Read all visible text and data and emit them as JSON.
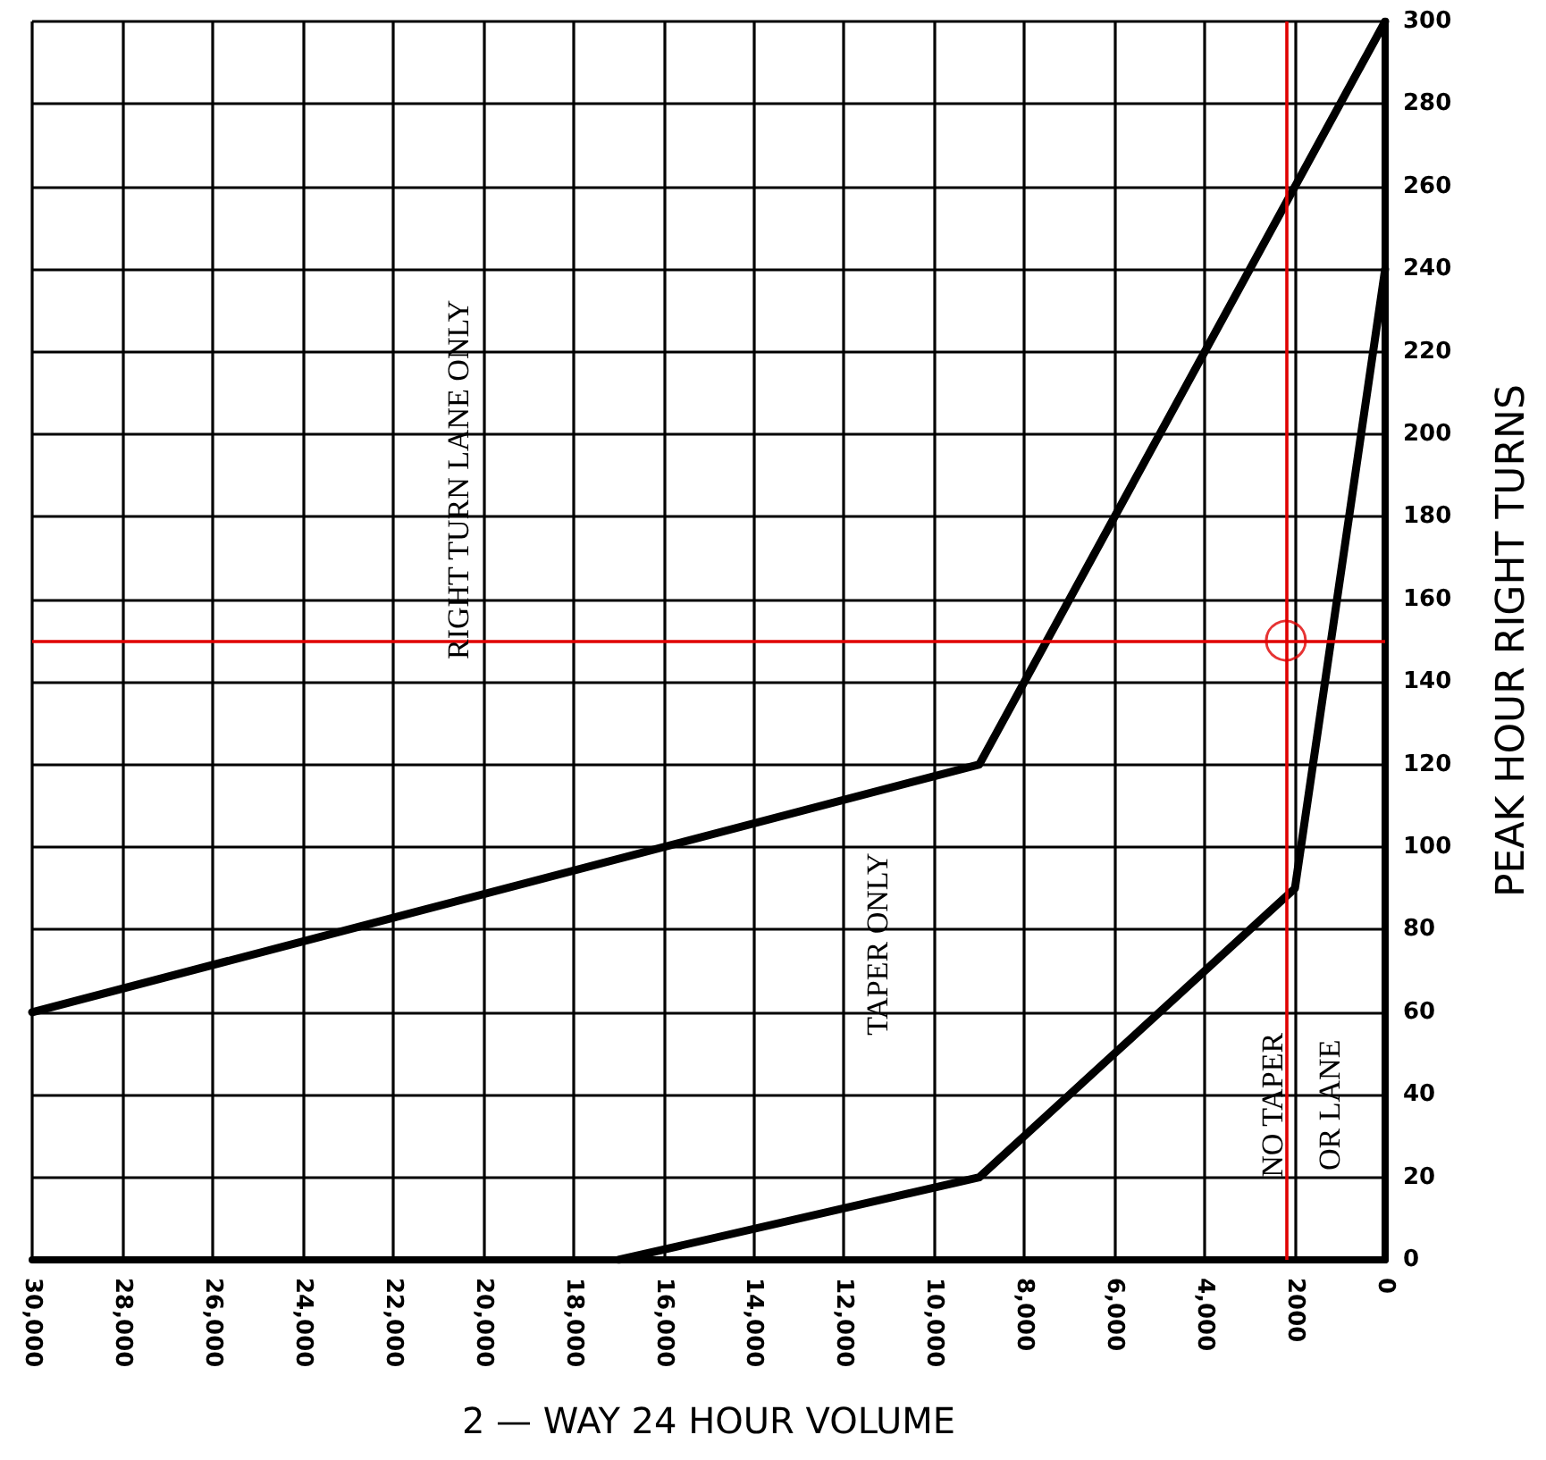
{
  "chart_data": {
    "type": "line",
    "xlabel": "2 — WAY 24 HOUR VOLUME",
    "ylabel": "PEAK HOUR RIGHT TURNS",
    "xlim": [
      30000,
      0
    ],
    "ylim": [
      0,
      300
    ],
    "xticks": [
      {
        "value": 30000,
        "label": "30,000"
      },
      {
        "value": 28000,
        "label": "28,000"
      },
      {
        "value": 26000,
        "label": "26,000"
      },
      {
        "value": 24000,
        "label": "24,000"
      },
      {
        "value": 22000,
        "label": "22,000"
      },
      {
        "value": 20000,
        "label": "20,000"
      },
      {
        "value": 18000,
        "label": "18,000"
      },
      {
        "value": 16000,
        "label": "16,000"
      },
      {
        "value": 14000,
        "label": "14,000"
      },
      {
        "value": 12000,
        "label": "12,000"
      },
      {
        "value": 10000,
        "label": "10,000"
      },
      {
        "value": 8000,
        "label": "8,000"
      },
      {
        "value": 6000,
        "label": "6,000"
      },
      {
        "value": 4000,
        "label": "4,000"
      },
      2000,
      0
    ],
    "yticks": [
      0,
      20,
      40,
      60,
      80,
      100,
      120,
      140,
      160,
      180,
      200,
      220,
      240,
      260,
      280,
      300
    ],
    "grid": true,
    "marker": "none",
    "line_style": "solid",
    "series": [
      {
        "color": "#000000",
        "x": [
          30000,
          9000,
          0
        ],
        "values": [
          60,
          120,
          300
        ]
      },
      {
        "color": "#000000",
        "x": [
          17000,
          9000,
          6000,
          2000,
          0
        ],
        "values": [
          0,
          20,
          50,
          90,
          240
        ]
      },
      {
        "type": "scatter",
        "color": "#e00000",
        "marker": "circle",
        "x": [
          2200
        ],
        "values": [
          150
        ]
      }
    ],
    "ref_lines": [
      {
        "axis": "x",
        "value": 2200,
        "color": "#e00000"
      },
      {
        "axis": "y",
        "value": 150,
        "color": "#e00000"
      }
    ],
    "annotations": [
      "RIGHT TURN LANE ONLY",
      "TAPER ONLY",
      "NO TAPER\nOR LANE"
    ]
  }
}
